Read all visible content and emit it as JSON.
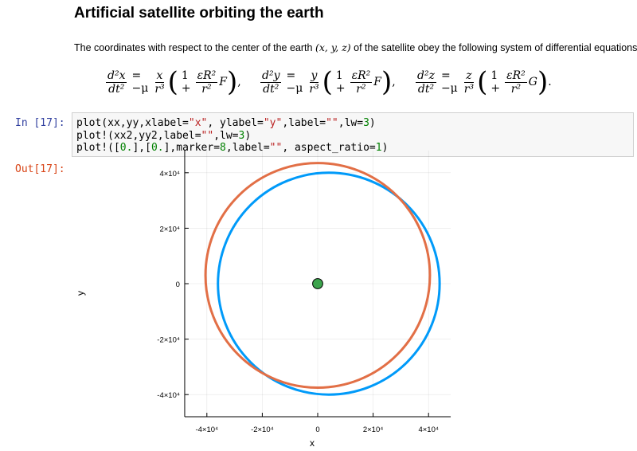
{
  "markdown": {
    "title": "Artificial satellite orbiting the earth",
    "intro_prefix": "The coordinates with respect to the center of the earth",
    "intro_math": "(x, y, z)",
    "intro_suffix": "of the satellite obey the following system of differential equations:"
  },
  "cell": {
    "in_prompt": "In [17]:",
    "out_prompt": "Out[17]:",
    "code_lines": [
      "plot(xx,yy,xlabel=\"x\", ylabel=\"y\",label=\"\",lw=3)",
      "plot!(xx2,yy2,label=\"\",lw=3)",
      "plot!([0.],[0.],marker=8,label=\"\", aspect_ratio=1)"
    ]
  },
  "chart_data": {
    "type": "line",
    "xlabel": "x",
    "ylabel": "y",
    "xlim": [
      -48000,
      48000
    ],
    "ylim": [
      -48000,
      48000
    ],
    "xticks": [
      -40000,
      -20000,
      0,
      20000,
      40000
    ],
    "yticks": [
      -40000,
      -20000,
      0,
      20000,
      40000
    ],
    "xtick_labels": [
      "-4×10⁴",
      "-2×10⁴",
      "0",
      "2×10⁴",
      "4×10⁴"
    ],
    "ytick_labels": [
      "-4×10⁴",
      "-2×10⁴",
      "0",
      "2×10⁴",
      "4×10⁴"
    ],
    "grid": true,
    "legend": "none",
    "aspect_ratio": 1,
    "series": [
      {
        "color": "#009af9",
        "shape": "circle",
        "center": [
          4000,
          0
        ],
        "radius": 40000,
        "linewidth": 3
      },
      {
        "color": "#e26f46",
        "shape": "circle",
        "center": [
          0,
          3000
        ],
        "radius": 40500,
        "linewidth": 3
      },
      {
        "color": "#3da44d",
        "shape": "marker",
        "points": [
          [
            0,
            0
          ]
        ],
        "marker_size": 8
      }
    ]
  }
}
